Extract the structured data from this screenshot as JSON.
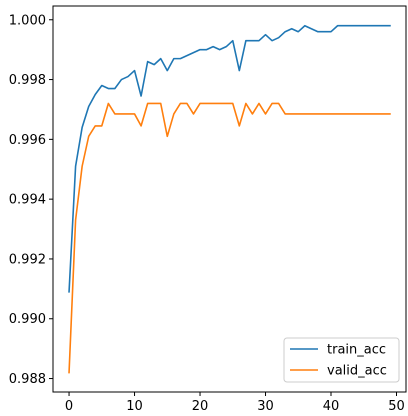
{
  "chart_data": {
    "type": "line",
    "title": "",
    "xlabel": "",
    "ylabel": "",
    "xlim": [
      -2.45,
      51.45
    ],
    "ylim": [
      0.98755,
      1.00046
    ],
    "grid": false,
    "legend_position": "lower-right",
    "x_ticks": [
      0,
      10,
      20,
      30,
      40,
      50
    ],
    "y_ticks": [
      0.988,
      0.99,
      0.992,
      0.994,
      0.996,
      0.998,
      1.0
    ],
    "x_tick_labels": [
      "0",
      "10",
      "20",
      "30",
      "40",
      "50"
    ],
    "y_tick_labels": [
      "0.988",
      "0.990",
      "0.992",
      "0.994",
      "0.996",
      "0.998",
      "1.000"
    ],
    "x": [
      0,
      1,
      2,
      3,
      4,
      5,
      6,
      7,
      8,
      9,
      10,
      11,
      12,
      13,
      14,
      15,
      16,
      17,
      18,
      19,
      20,
      21,
      22,
      23,
      24,
      25,
      26,
      27,
      28,
      29,
      30,
      31,
      32,
      33,
      34,
      35,
      36,
      37,
      38,
      39,
      40,
      41,
      42,
      43,
      44,
      45,
      46,
      47,
      48,
      49
    ],
    "series": [
      {
        "name": "train_acc",
        "color": "#1f77b4",
        "values": [
          0.9909,
          0.9951,
          0.9964,
          0.9971,
          0.9975,
          0.9978,
          0.9977,
          0.9977,
          0.998,
          0.9981,
          0.9983,
          0.99745,
          0.9986,
          0.9985,
          0.9987,
          0.9983,
          0.9987,
          0.9987,
          0.9988,
          0.9989,
          0.999,
          0.999,
          0.9991,
          0.999,
          0.9991,
          0.9993,
          0.9983,
          0.9993,
          0.9993,
          0.9993,
          0.9995,
          0.9993,
          0.9994,
          0.9996,
          0.9997,
          0.9996,
          0.9998,
          0.9997,
          0.9996,
          0.9996,
          0.9996,
          0.9998,
          0.9998,
          0.9998,
          0.9998,
          0.9998,
          0.9998,
          0.9998,
          0.9998,
          0.9998
        ]
      },
      {
        "name": "valid_acc",
        "color": "#ff7f0e",
        "values": [
          0.9882,
          0.9933,
          0.9951,
          0.9961,
          0.99645,
          0.99645,
          0.9972,
          0.99685,
          0.99685,
          0.99685,
          0.99685,
          0.99645,
          0.9972,
          0.9972,
          0.9972,
          0.9961,
          0.99685,
          0.9972,
          0.9972,
          0.99685,
          0.9972,
          0.9972,
          0.9972,
          0.9972,
          0.9972,
          0.9972,
          0.99645,
          0.9972,
          0.99685,
          0.9972,
          0.99685,
          0.9972,
          0.9972,
          0.99685,
          0.99685,
          0.99685,
          0.99685,
          0.99685,
          0.99685,
          0.99685,
          0.99685,
          0.99685,
          0.99685,
          0.99685,
          0.99685,
          0.99685,
          0.99685,
          0.99685,
          0.99685,
          0.99685
        ]
      }
    ]
  }
}
